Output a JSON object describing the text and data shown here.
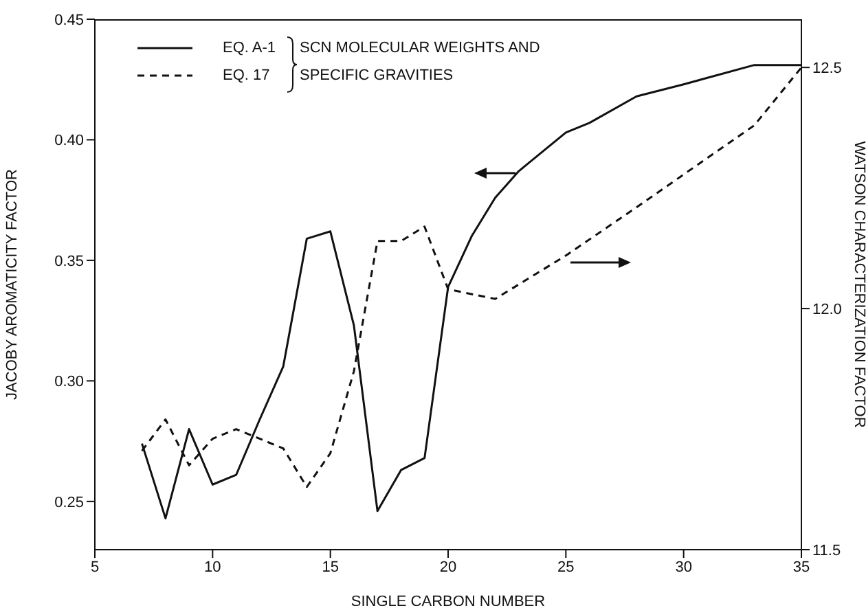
{
  "chart_data": {
    "type": "line",
    "xlabel": "SINGLE CARBON NUMBER",
    "ylabel": "JACOBY AROMATICITY FACTOR",
    "y2label": "WATSON CHARACTERIZATION FACTOR",
    "xlim": [
      5,
      35
    ],
    "xticks": [
      5,
      10,
      15,
      20,
      25,
      30,
      35
    ],
    "ylim": [
      0.23,
      0.45
    ],
    "yticks": [
      0.25,
      {
        "value": 0.3,
        "label": "0.30"
      },
      0.35,
      {
        "value": 0.4,
        "label": "0.40"
      },
      0.45
    ],
    "y2lim": [
      11.5,
      12.6
    ],
    "y2ticks": [
      11.5,
      {
        "value": 12,
        "label": "12.0"
      },
      12.5
    ],
    "grid": false,
    "legend": "top left",
    "marker": "none",
    "annotations": [
      "SCN MOLECULAR WEIGHTS AND SPECIFIC GRAVITIES"
    ],
    "series": [
      {
        "name": "EQ. A-1",
        "color": "#111111",
        "line_style": "solid",
        "x": [
          7,
          8,
          9,
          10,
          11,
          12,
          13,
          14,
          15,
          16,
          17,
          18,
          19,
          20,
          21,
          22,
          23,
          25,
          26,
          28,
          30,
          33,
          35
        ],
        "values": [
          0.274,
          0.243,
          0.28,
          0.257,
          0.261,
          0.284,
          0.306,
          0.359,
          0.362,
          0.323,
          0.246,
          0.263,
          0.268,
          0.339,
          0.36,
          0.376,
          0.387,
          0.403,
          0.407,
          0.418,
          0.423,
          0.431,
          0.431
        ]
      },
      {
        "name": "EQ. 17",
        "color": "#111111",
        "line_style": "dashed",
        "axis": "y2",
        "x": [
          7,
          8,
          9,
          10,
          11,
          13,
          14,
          15,
          16,
          17,
          18,
          19,
          20,
          22,
          25,
          28,
          33,
          35
        ],
        "values": [
          11.705,
          11.77,
          11.675,
          11.73,
          11.75,
          11.71,
          11.63,
          11.7,
          11.87,
          12.14,
          12.14,
          12.17,
          12.04,
          12.02,
          12.11,
          12.21,
          12.38,
          12.5
        ]
      }
    ]
  }
}
